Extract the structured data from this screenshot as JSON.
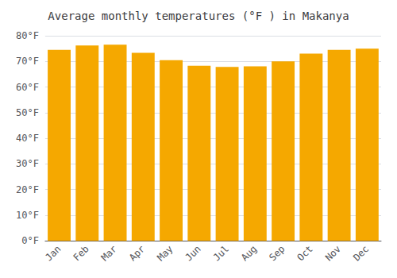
{
  "chart_data": {
    "type": "bar",
    "title": "Average monthly temperatures (°F ) in Makanya",
    "categories": [
      "Jan",
      "Feb",
      "Mar",
      "Apr",
      "May",
      "Jun",
      "Jul",
      "Aug",
      "Sep",
      "Oct",
      "Nov",
      "Dec"
    ],
    "values": [
      74.5,
      76.2,
      76.5,
      73.3,
      70.5,
      68.3,
      67.8,
      68.1,
      70.0,
      73.0,
      74.5,
      75.0
    ],
    "color": "#F5A800",
    "ylim": [
      0,
      80
    ],
    "yticks": [
      {
        "value": 0,
        "label": "0°F"
      },
      {
        "value": 10,
        "label": "10°F"
      },
      {
        "value": 20,
        "label": "20°F"
      },
      {
        "value": 30,
        "label": "30°F"
      },
      {
        "value": 40,
        "label": "40°F"
      },
      {
        "value": 50,
        "label": "50°F"
      },
      {
        "value": 60,
        "label": "60°F"
      },
      {
        "value": 70,
        "label": "70°F"
      },
      {
        "value": 80,
        "label": "80°F"
      }
    ],
    "grid": true
  }
}
